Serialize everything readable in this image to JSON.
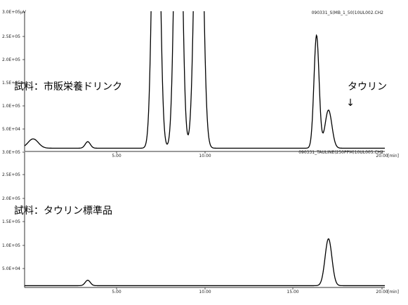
{
  "chart_data": [
    {
      "type": "line",
      "file": "090331_S(MB_1_50)10UL002.CH2",
      "yunit": "μV",
      "xunit": "[min]",
      "xlim": [
        0,
        21.1
      ],
      "ylim": [
        0,
        300000
      ],
      "x_tick_labels": [
        "5.00",
        "10.00",
        "20.00"
      ],
      "y_tick_labels": [
        "3.0E+05",
        "2.5E+05",
        "2.0E+05",
        "1.5E+05",
        "1.0E+05",
        "5.0E+04"
      ],
      "annotation": "試料：市販栄養ドリンク",
      "peak_label": "タウリン",
      "peak_arrow": "↓",
      "baseline": 7000,
      "peaks": [
        {
          "rt": 0.5,
          "height": 20000,
          "width": 0.3
        },
        {
          "rt": 3.7,
          "height": 14000,
          "width": 0.15
        },
        {
          "rt": 7.7,
          "height": 850000,
          "width": 0.2
        },
        {
          "rt": 9.0,
          "height": 850000,
          "width": 0.2
        },
        {
          "rt": 10.2,
          "height": 850000,
          "width": 0.22
        },
        {
          "rt": 17.1,
          "height": 243000,
          "width": 0.15
        },
        {
          "rt": 17.8,
          "height": 82000,
          "width": 0.2
        }
      ]
    },
    {
      "type": "line",
      "file": "090331_TAULINE(250PPM)10UL005.CH2",
      "yunit": "",
      "xunit": "[min]",
      "xlim": [
        0,
        21.1
      ],
      "ylim": [
        0,
        300000
      ],
      "x_tick_labels": [
        "5.00",
        "10.00",
        "15.00",
        "20.00"
      ],
      "y_tick_labels": [
        "3.0E+05",
        "2.5E+05",
        "2.0E+05",
        "1.5E+05",
        "1.0E+05",
        "5.0E+04"
      ],
      "annotation": "試料：タウリン標準品",
      "baseline": 4000,
      "peaks": [
        {
          "rt": 3.7,
          "height": 12000,
          "width": 0.15
        },
        {
          "rt": 17.8,
          "height": 104000,
          "width": 0.2
        }
      ]
    }
  ]
}
